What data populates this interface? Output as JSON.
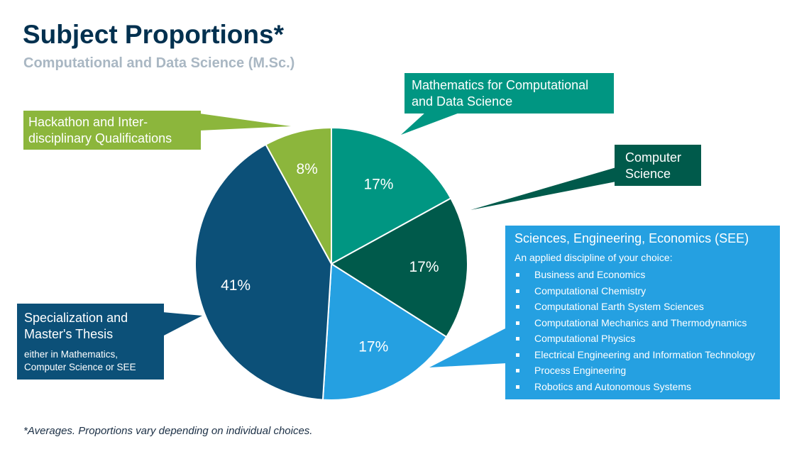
{
  "title": "Subject Proportions*",
  "subtitle": "Computational and Data Science (M.Sc.)",
  "footnote": "*Averages. Proportions vary depending on individual choices.",
  "chart_data": {
    "type": "pie",
    "title": "Subject Proportions*",
    "start": "top, clockwise",
    "slices": [
      {
        "label": "Mathematics for Computational and Data Science",
        "value": 17,
        "text": "17%",
        "color": "#009682"
      },
      {
        "label": "Computer Science",
        "value": 17,
        "text": "17%",
        "color": "#005a4b"
      },
      {
        "label": "Sciences, Engineering, Economics (SEE)",
        "value": 17,
        "text": "17%",
        "color": "#25a0e1"
      },
      {
        "label": "Specialization and Master's Thesis",
        "value": 41,
        "text": "41%",
        "color": "#0c5078"
      },
      {
        "label": "Hackathon and Interdisciplinary Qualifications",
        "value": 8,
        "text": "8%",
        "color": "#8cb63c"
      }
    ]
  },
  "callouts": {
    "math": {
      "line1": "Mathematics for Computational",
      "line2": "and Data Science"
    },
    "cs": {
      "line1": "Computer",
      "line2": "Science"
    },
    "see": {
      "heading": "Sciences, Engineering, Economics (SEE)",
      "intro": "An applied discipline of your choice:",
      "items": [
        "Business and Economics",
        "Computational Chemistry",
        "Computational Earth System Sciences",
        "Computational Mechanics and Thermodynamics",
        "Computational Physics",
        "Electrical Engineering and Information Technology",
        "Process Engineering",
        "Robotics and Autonomous Systems"
      ]
    },
    "thesis": {
      "line1": "Specialization and",
      "line2": "Master's Thesis",
      "sub1": "either in Mathematics,",
      "sub2": "Computer Science or SEE"
    },
    "hack": {
      "line1": "Hackathon and Inter-",
      "line2": "disciplinary Qualifications"
    }
  }
}
